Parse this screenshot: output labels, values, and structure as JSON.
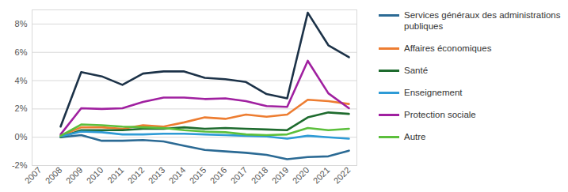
{
  "chart_data": {
    "type": "line",
    "x": [
      "2007",
      "2008",
      "2009",
      "2010",
      "2011",
      "2012",
      "2013",
      "2014",
      "2015",
      "2016",
      "2017",
      "2018",
      "2019",
      "2020",
      "2021",
      "2022"
    ],
    "series": [
      {
        "name": null,
        "color": "#1c3248",
        "values": [
          null,
          0.75,
          4.6,
          4.3,
          3.7,
          4.5,
          4.65,
          4.65,
          4.2,
          4.1,
          3.9,
          3.05,
          2.75,
          8.8,
          6.5,
          5.65
        ]
      },
      {
        "name": "Services généraux des administrations publiques",
        "color": "#2b6a94",
        "values": [
          null,
          0.0,
          0.15,
          -0.25,
          -0.25,
          -0.2,
          -0.3,
          -0.6,
          -0.9,
          -1.0,
          -1.1,
          -1.25,
          -1.55,
          -1.4,
          -1.35,
          -0.95
        ]
      },
      {
        "name": "Affaires économiques",
        "color": "#ed7d31",
        "values": [
          null,
          0.1,
          0.7,
          0.7,
          0.6,
          0.85,
          0.75,
          1.05,
          1.4,
          1.3,
          1.6,
          1.45,
          1.6,
          2.65,
          2.55,
          2.35
        ]
      },
      {
        "name": "Santé",
        "color": "#1e6b2e",
        "values": [
          null,
          0.0,
          0.5,
          0.5,
          0.5,
          0.6,
          0.6,
          0.7,
          0.6,
          0.65,
          0.6,
          0.55,
          0.5,
          1.4,
          1.75,
          1.65
        ]
      },
      {
        "name": "Enseignement",
        "color": "#2e9bd6",
        "values": [
          null,
          0.05,
          0.4,
          0.35,
          0.2,
          0.2,
          0.25,
          0.25,
          0.2,
          0.15,
          0.1,
          0.05,
          -0.1,
          0.1,
          0.0,
          -0.1
        ]
      },
      {
        "name": "Protection sociale",
        "color": "#a020a0",
        "values": [
          null,
          0.2,
          2.05,
          2.0,
          2.05,
          2.5,
          2.8,
          2.8,
          2.7,
          2.75,
          2.55,
          2.2,
          2.15,
          5.4,
          3.1,
          2.05
        ]
      },
      {
        "name": "Autre",
        "color": "#5cbf3c",
        "values": [
          null,
          0.1,
          0.9,
          0.85,
          0.75,
          0.7,
          0.65,
          0.5,
          0.4,
          0.35,
          0.2,
          0.15,
          0.2,
          0.65,
          0.5,
          0.6
        ]
      }
    ],
    "ylim": [
      -2,
      9
    ],
    "yticks": [
      {
        "value": -2,
        "label": "-2%"
      },
      {
        "value": 0,
        "label": "0%"
      },
      {
        "value": 2,
        "label": "2%"
      },
      {
        "value": 4,
        "label": "4%"
      },
      {
        "value": 6,
        "label": "6%"
      },
      {
        "value": 8,
        "label": "8%"
      }
    ],
    "grid": true,
    "legend": "right"
  }
}
